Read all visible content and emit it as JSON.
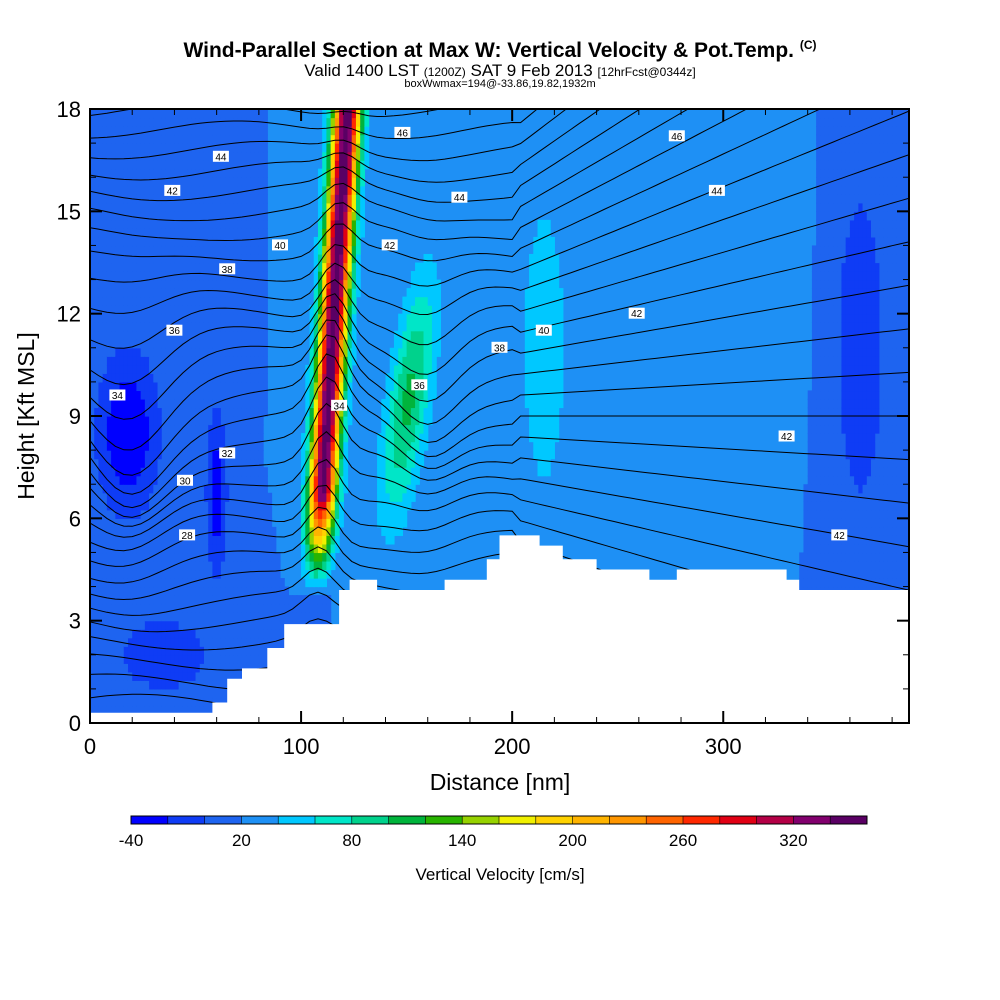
{
  "header": {
    "title": "Wind-Parallel Section at Max W: Vertical Velocity & Pot.Temp.",
    "copyright": "(C)",
    "valid_prefix": "Valid 1400 LST",
    "valid_utc": "(1200Z)",
    "valid_date": "SAT 9 Feb 2013",
    "forecast_info": "[12hrFcst@0344z]",
    "box_info": "boxWwmax=194@-33.86,19.82,1932m"
  },
  "chart_data": {
    "type": "heatmap",
    "title": "Wind-Parallel Section at Max W: Vertical Velocity & Pot.Temp.",
    "xlabel": "Distance [nm]",
    "ylabel": "Height [Kft MSL]",
    "xlim": [
      0,
      388
    ],
    "ylim": [
      0,
      18
    ],
    "x_ticks": [
      0,
      100,
      200,
      300
    ],
    "y_ticks": [
      0,
      3,
      6,
      9,
      12,
      15,
      18
    ],
    "colorbar": {
      "label": "Vertical Velocity [cm/s]",
      "min": -40,
      "max": 360,
      "step": 20,
      "tick_labels": [
        "-40",
        "20",
        "80",
        "140",
        "200",
        "260",
        "320"
      ],
      "colors": [
        "#0000ff",
        "#0f3cf5",
        "#1e64f0",
        "#1e90f5",
        "#00c8ff",
        "#00e6c8",
        "#00d28c",
        "#00b43c",
        "#28b400",
        "#96d200",
        "#f0f000",
        "#ffd200",
        "#ffb400",
        "#ff9600",
        "#ff6400",
        "#ff2800",
        "#e10014",
        "#b40046",
        "#82006e",
        "#5a0064"
      ]
    },
    "w_features": [
      {
        "name": "updraft core",
        "max_w": 360,
        "x_range": [
          98,
          135
        ],
        "height_range": [
          4,
          18
        ]
      },
      {
        "name": "secondary updraft",
        "max_w": 110,
        "x_range": [
          150,
          175
        ],
        "height_range": [
          5,
          14
        ]
      },
      {
        "name": "downdraft",
        "min_w": -40,
        "x_range": [
          0,
          30
        ],
        "height_range": [
          6,
          11
        ]
      }
    ],
    "terrain": [
      {
        "x": 0,
        "h": 0.3
      },
      {
        "x": 58,
        "h": 0.3
      },
      {
        "x": 58,
        "h": 0.6
      },
      {
        "x": 65,
        "h": 0.6
      },
      {
        "x": 65,
        "h": 1.3
      },
      {
        "x": 72,
        "h": 1.3
      },
      {
        "x": 72,
        "h": 1.6
      },
      {
        "x": 84,
        "h": 1.6
      },
      {
        "x": 84,
        "h": 2.2
      },
      {
        "x": 92,
        "h": 2.2
      },
      {
        "x": 92,
        "h": 2.9
      },
      {
        "x": 118,
        "h": 2.9
      },
      {
        "x": 118,
        "h": 3.9
      },
      {
        "x": 123,
        "h": 3.9
      },
      {
        "x": 123,
        "h": 4.2
      },
      {
        "x": 136,
        "h": 4.2
      },
      {
        "x": 136,
        "h": 3.9
      },
      {
        "x": 168,
        "h": 3.9
      },
      {
        "x": 168,
        "h": 4.2
      },
      {
        "x": 188,
        "h": 4.2
      },
      {
        "x": 188,
        "h": 4.8
      },
      {
        "x": 194,
        "h": 4.8
      },
      {
        "x": 194,
        "h": 5.5
      },
      {
        "x": 213,
        "h": 5.5
      },
      {
        "x": 213,
        "h": 5.2
      },
      {
        "x": 224,
        "h": 5.2
      },
      {
        "x": 224,
        "h": 4.8
      },
      {
        "x": 240,
        "h": 4.8
      },
      {
        "x": 240,
        "h": 4.5
      },
      {
        "x": 265,
        "h": 4.5
      },
      {
        "x": 265,
        "h": 4.2
      },
      {
        "x": 278,
        "h": 4.2
      },
      {
        "x": 278,
        "h": 4.5
      },
      {
        "x": 330,
        "h": 4.5
      },
      {
        "x": 330,
        "h": 4.2
      },
      {
        "x": 336,
        "h": 4.2
      },
      {
        "x": 336,
        "h": 3.9
      },
      {
        "x": 388,
        "h": 3.9
      }
    ],
    "theta_labels": [
      {
        "text": "44",
        "x": 62,
        "h": 16.6
      },
      {
        "text": "42",
        "x": 39,
        "h": 15.6
      },
      {
        "text": "40",
        "x": 90,
        "h": 14.0
      },
      {
        "text": "38",
        "x": 65,
        "h": 13.3
      },
      {
        "text": "36",
        "x": 40,
        "h": 11.5
      },
      {
        "text": "34",
        "x": 13,
        "h": 9.6
      },
      {
        "text": "32",
        "x": 65,
        "h": 7.9
      },
      {
        "text": "30",
        "x": 45,
        "h": 7.1
      },
      {
        "text": "28",
        "x": 46,
        "h": 5.5
      },
      {
        "text": "34",
        "x": 118,
        "h": 9.3
      },
      {
        "text": "36",
        "x": 156,
        "h": 9.9
      },
      {
        "text": "38",
        "x": 194,
        "h": 11.0
      },
      {
        "text": "40",
        "x": 215,
        "h": 11.5
      },
      {
        "text": "42",
        "x": 142,
        "h": 14.0
      },
      {
        "text": "44",
        "x": 175,
        "h": 15.4
      },
      {
        "text": "46",
        "x": 148,
        "h": 17.3
      },
      {
        "text": "46",
        "x": 278,
        "h": 17.2
      },
      {
        "text": "44",
        "x": 297,
        "h": 15.6
      },
      {
        "text": "42",
        "x": 259,
        "h": 12.0
      },
      {
        "text": "42",
        "x": 330,
        "h": 8.4
      },
      {
        "text": "42",
        "x": 355,
        "h": 5.5
      }
    ]
  }
}
